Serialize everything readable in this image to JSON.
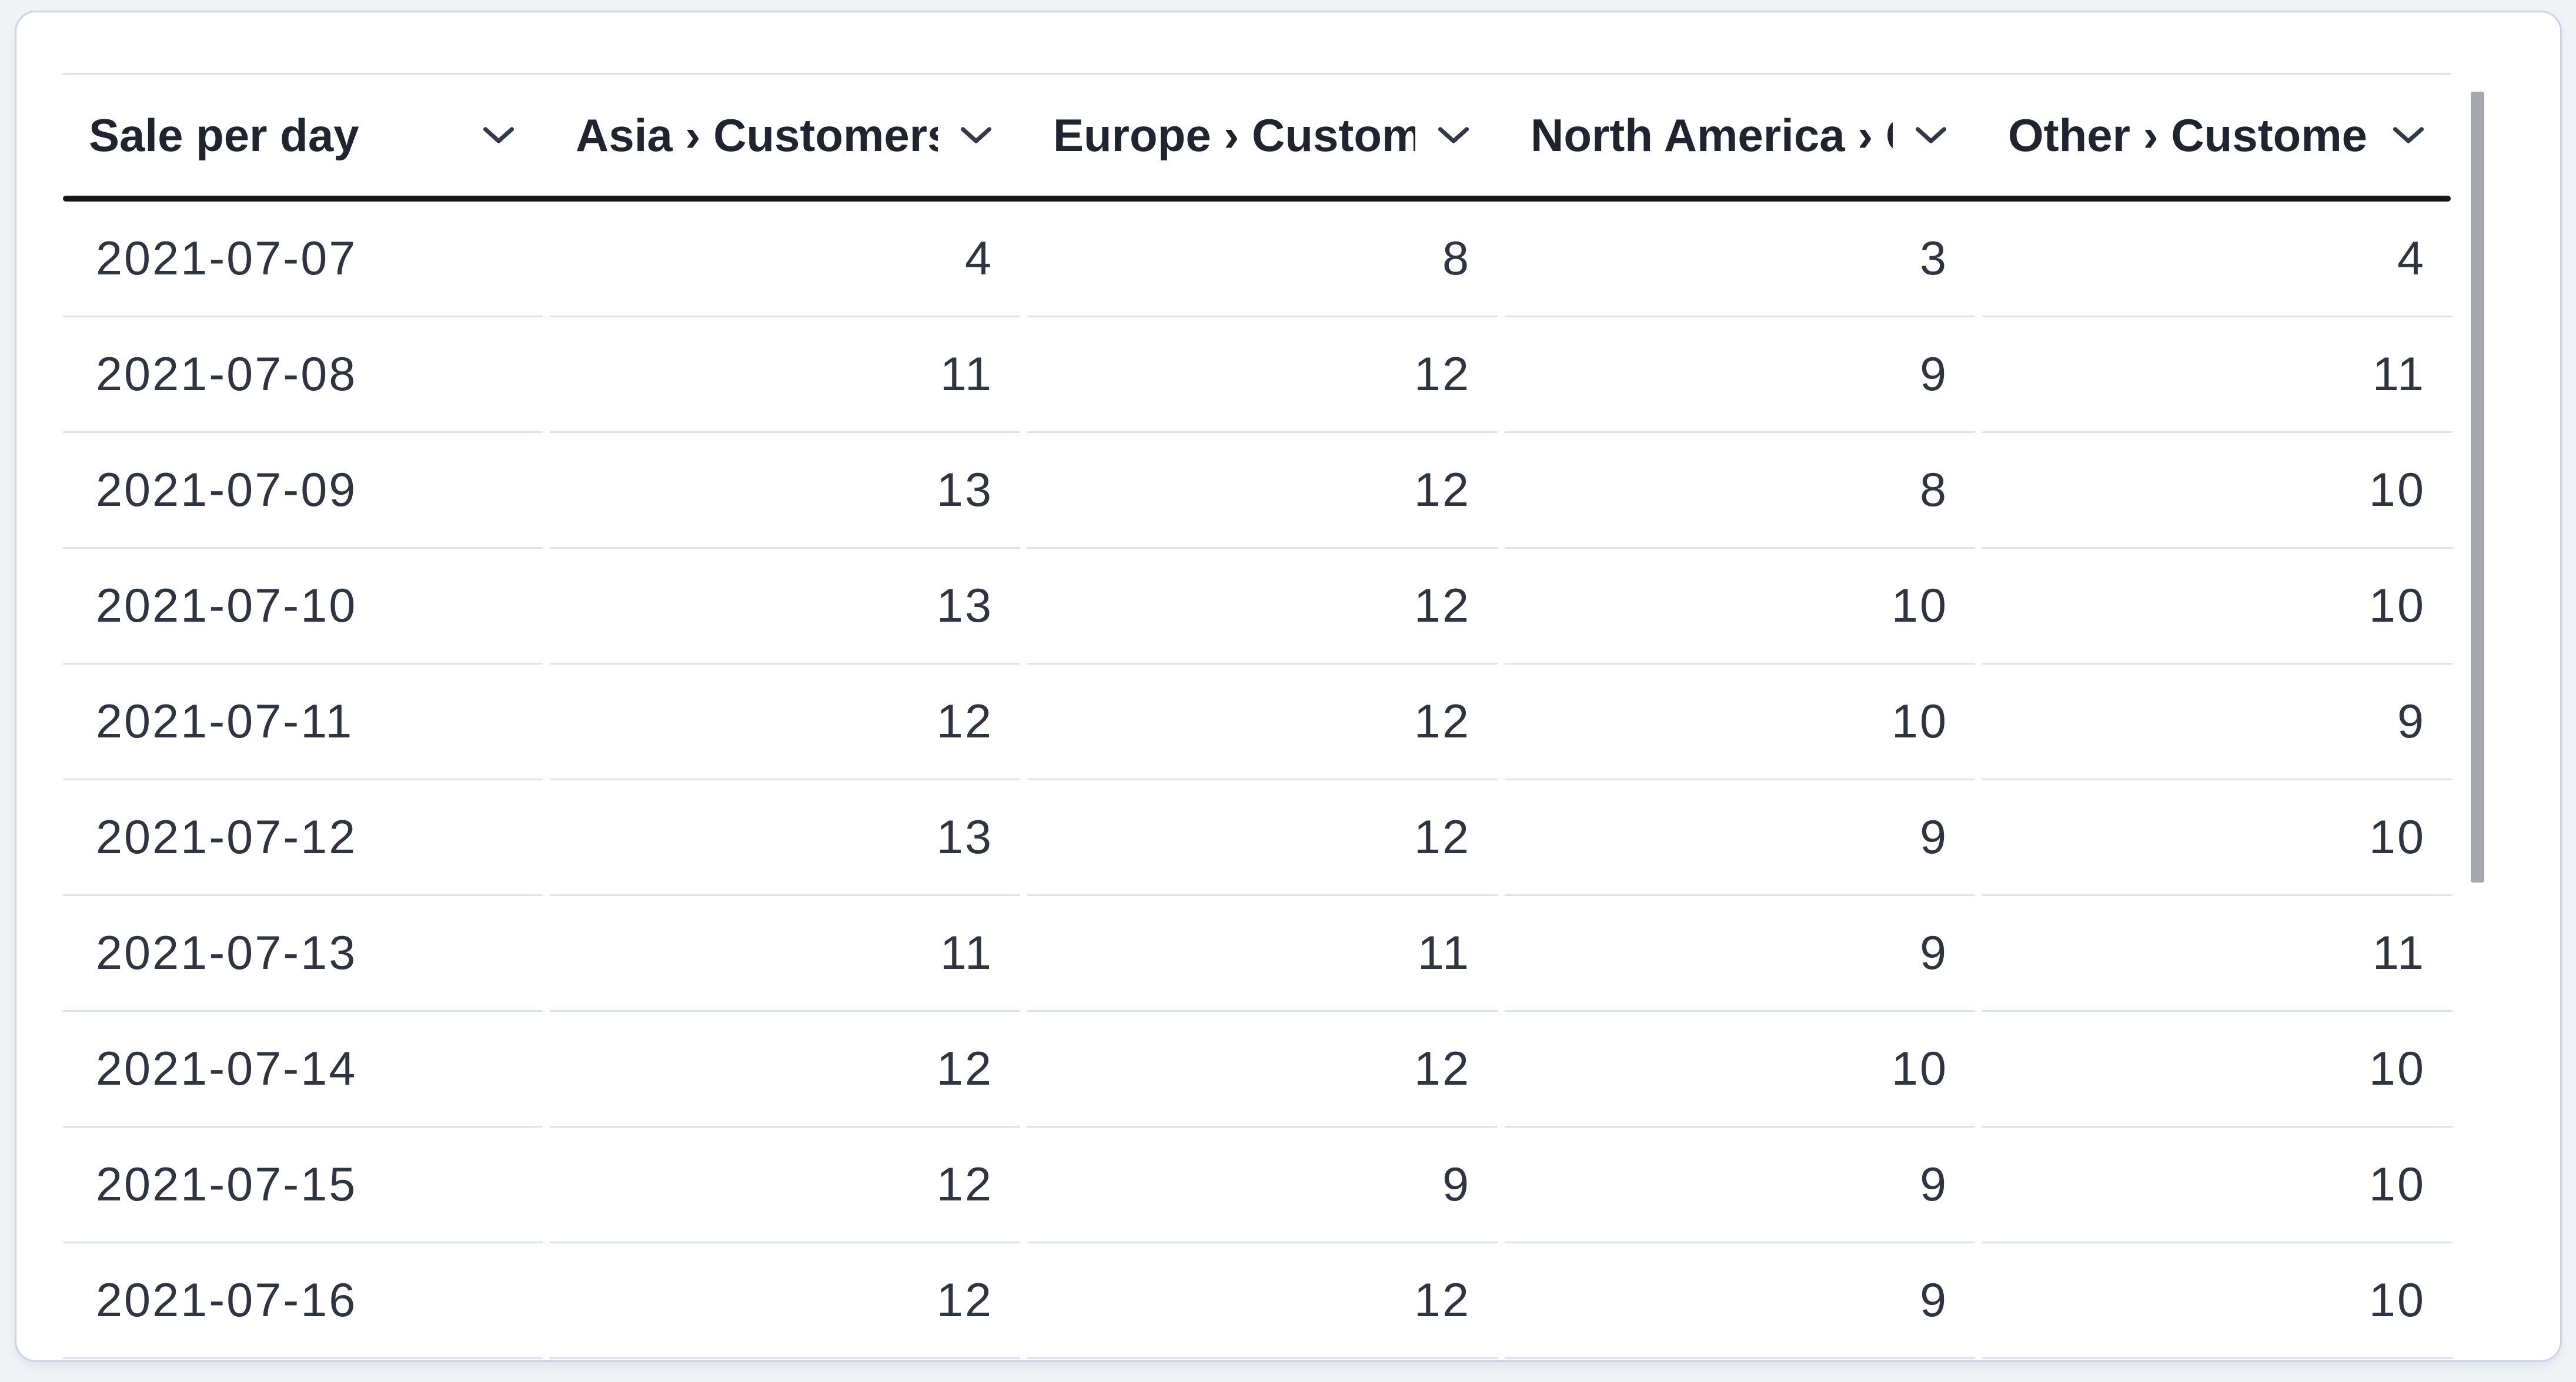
{
  "table": {
    "columns": [
      {
        "label": "Sale per day",
        "align": "left"
      },
      {
        "label": "Asia › Customers",
        "align": "right"
      },
      {
        "label": "Europe › Customers",
        "align": "right"
      },
      {
        "label": "North America › Customers",
        "align": "right"
      },
      {
        "label": "Other › Customers",
        "align": "right"
      }
    ],
    "rows": [
      [
        "2021-07-07",
        "4",
        "8",
        "3",
        "4"
      ],
      [
        "2021-07-08",
        "11",
        "12",
        "9",
        "11"
      ],
      [
        "2021-07-09",
        "13",
        "12",
        "8",
        "10"
      ],
      [
        "2021-07-10",
        "13",
        "12",
        "10",
        "10"
      ],
      [
        "2021-07-11",
        "12",
        "12",
        "10",
        "9"
      ],
      [
        "2021-07-12",
        "13",
        "12",
        "9",
        "10"
      ],
      [
        "2021-07-13",
        "11",
        "11",
        "9",
        "11"
      ],
      [
        "2021-07-14",
        "12",
        "12",
        "10",
        "10"
      ],
      [
        "2021-07-15",
        "12",
        "9",
        "9",
        "10"
      ],
      [
        "2021-07-16",
        "12",
        "12",
        "9",
        "10"
      ]
    ],
    "header_icon": "chevron-down"
  },
  "scrollbar": {
    "orientation": "vertical",
    "thumb_visible": true
  },
  "colors": {
    "page_bg": "#f1f3f7",
    "card_bg": "#ffffff",
    "card_border": "#cbd4e2",
    "table_top_border": "#dde3ee",
    "row_separator": "#dde3ee",
    "header_underline": "#14171c",
    "header_text": "#1f242e",
    "body_text": "#2f3540",
    "chevron": "#333947",
    "scrollbar_thumb": "#a5a9ae"
  }
}
